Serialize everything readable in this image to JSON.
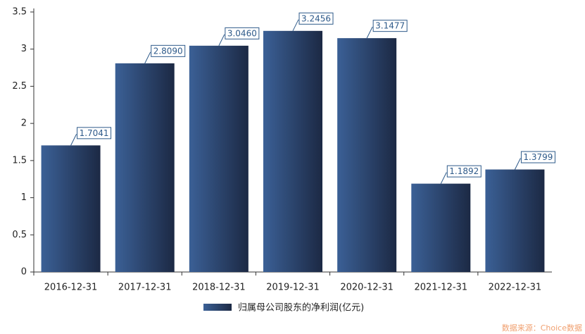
{
  "chart_data": {
    "type": "bar",
    "categories": [
      "2016-12-31",
      "2017-12-31",
      "2018-12-31",
      "2019-12-31",
      "2020-12-31",
      "2021-12-31",
      "2022-12-31"
    ],
    "series": [
      {
        "name": "归属母公司股东的净利润(亿元)",
        "gradient": [
          "#3b6096",
          "#1c2944"
        ],
        "values": [
          1.7041,
          2.809,
          3.046,
          3.2456,
          3.1477,
          1.1892,
          1.3799
        ],
        "value_labels": [
          "1.7041",
          "2.8090",
          "3.0460",
          "3.2456",
          "3.1477",
          "1.1892",
          "1.3799"
        ]
      }
    ],
    "ylim": [
      0,
      3.5
    ],
    "yticks": [
      0,
      0.5,
      1,
      1.5,
      2,
      2.5,
      3,
      3.5
    ],
    "source": "数据来源：Choice数据"
  }
}
